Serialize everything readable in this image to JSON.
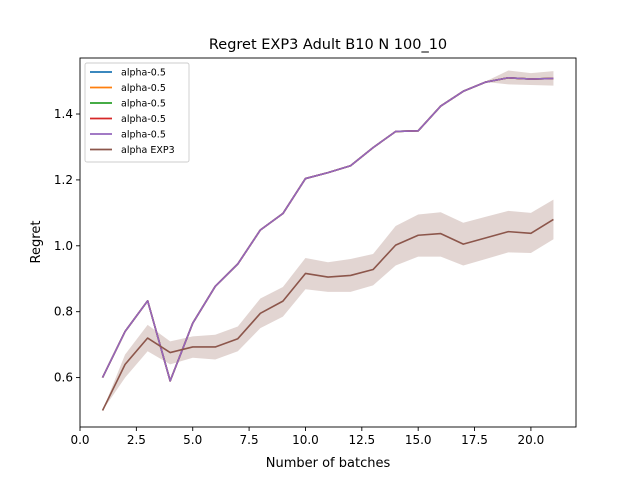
{
  "chart_data": {
    "type": "line",
    "title": "Regret EXP3 Adult B10 N 100_10",
    "xlabel": "Number of batches",
    "ylabel": "Regret",
    "xlim": [
      0.0,
      22.0
    ],
    "ylim": [
      0.45,
      1.57
    ],
    "x_ticks": [
      "0.0",
      "2.5",
      "5.0",
      "7.5",
      "10.0",
      "12.5",
      "15.0",
      "17.5",
      "20.0"
    ],
    "y_ticks": [
      "0.6",
      "0.8",
      "1.0",
      "1.2",
      "1.4"
    ],
    "grid": false,
    "legend_position": "top-left",
    "x": [
      1,
      2,
      3,
      4,
      5,
      6,
      7,
      8,
      9,
      10,
      11,
      12,
      13,
      14,
      15,
      16,
      17,
      18,
      19,
      20,
      21
    ],
    "series": [
      {
        "name": "alpha-0.5",
        "color": "#1f77b4",
        "values": [
          0.6,
          0.74,
          0.833,
          0.59,
          0.765,
          0.877,
          0.945,
          1.048,
          1.098,
          1.204,
          1.222,
          1.243,
          1.298,
          1.347,
          1.349,
          1.424,
          1.469,
          1.497,
          1.51,
          1.506,
          1.508
        ]
      },
      {
        "name": "alpha-0.5",
        "color": "#ff7f0e",
        "values": [
          0.6,
          0.74,
          0.833,
          0.59,
          0.765,
          0.877,
          0.945,
          1.048,
          1.098,
          1.204,
          1.222,
          1.243,
          1.298,
          1.347,
          1.349,
          1.424,
          1.469,
          1.497,
          1.51,
          1.506,
          1.508
        ]
      },
      {
        "name": "alpha-0.5",
        "color": "#2ca02c",
        "values": [
          0.6,
          0.74,
          0.833,
          0.59,
          0.765,
          0.877,
          0.945,
          1.048,
          1.098,
          1.204,
          1.222,
          1.243,
          1.298,
          1.347,
          1.349,
          1.424,
          1.469,
          1.497,
          1.51,
          1.506,
          1.508
        ]
      },
      {
        "name": "alpha-0.5",
        "color": "#d62728",
        "values": [
          0.6,
          0.74,
          0.833,
          0.59,
          0.765,
          0.877,
          0.945,
          1.048,
          1.098,
          1.204,
          1.222,
          1.243,
          1.298,
          1.347,
          1.349,
          1.424,
          1.469,
          1.497,
          1.51,
          1.506,
          1.508
        ]
      },
      {
        "name": "alpha-0.5",
        "color": "#9467bd",
        "values": [
          0.6,
          0.74,
          0.833,
          0.59,
          0.765,
          0.877,
          0.945,
          1.048,
          1.098,
          1.204,
          1.222,
          1.243,
          1.298,
          1.347,
          1.349,
          1.424,
          1.469,
          1.497,
          1.51,
          1.506,
          1.508
        ],
        "band": {
          "lower": [
            0.6,
            0.74,
            0.833,
            0.59,
            0.765,
            0.877,
            0.945,
            1.048,
            1.098,
            1.204,
            1.222,
            1.243,
            1.298,
            1.347,
            1.349,
            1.424,
            1.469,
            1.497,
            1.49,
            1.488,
            1.486
          ],
          "upper": [
            0.6,
            0.74,
            0.833,
            0.59,
            0.765,
            0.877,
            0.945,
            1.048,
            1.098,
            1.204,
            1.222,
            1.243,
            1.298,
            1.347,
            1.349,
            1.424,
            1.469,
            1.499,
            1.532,
            1.524,
            1.53
          ],
          "color": "#8c564b"
        }
      },
      {
        "name": "alpha EXP3",
        "color": "#8c564b",
        "values": [
          0.5,
          0.64,
          0.72,
          0.676,
          0.693,
          0.693,
          0.718,
          0.795,
          0.832,
          0.916,
          0.905,
          0.91,
          0.928,
          1.002,
          1.032,
          1.037,
          1.005,
          1.024,
          1.043,
          1.038,
          1.08
        ],
        "band": {
          "lower": [
            0.5,
            0.6,
            0.68,
            0.64,
            0.66,
            0.655,
            0.68,
            0.75,
            0.785,
            0.868,
            0.86,
            0.86,
            0.88,
            0.94,
            0.967,
            0.967,
            0.94,
            0.96,
            0.98,
            0.978,
            1.02
          ],
          "upper": [
            0.5,
            0.67,
            0.76,
            0.71,
            0.725,
            0.73,
            0.755,
            0.84,
            0.875,
            0.963,
            0.95,
            0.96,
            0.975,
            1.06,
            1.095,
            1.102,
            1.07,
            1.088,
            1.106,
            1.1,
            1.14
          ],
          "color": "#8c564b"
        }
      }
    ]
  }
}
